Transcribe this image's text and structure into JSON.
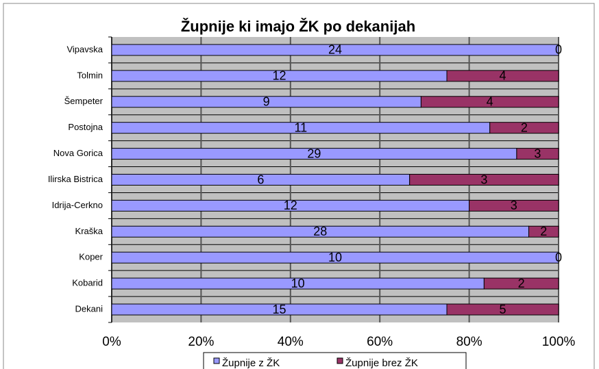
{
  "chart_data": {
    "type": "bar",
    "orientation": "horizontal",
    "stacking": "percent",
    "title": "Župnije ki imajo ŽK po dekanijah",
    "categories": [
      "Vipavska",
      "Tolmin",
      "Šempeter",
      "Postojna",
      "Nova Gorica",
      "Ilirska Bistrica",
      "Idrija-Cerkno",
      "Kraška",
      "Koper",
      "Kobarid",
      "Dekani"
    ],
    "series": [
      {
        "name": "Župnije z ŽK",
        "color": "#9999ff",
        "values": [
          24,
          12,
          9,
          11,
          29,
          6,
          12,
          28,
          10,
          10,
          15
        ]
      },
      {
        "name": "Župnije brez ŽK",
        "color": "#993366",
        "values": [
          0,
          4,
          4,
          2,
          3,
          3,
          3,
          2,
          0,
          2,
          5
        ]
      }
    ],
    "xlim": [
      0,
      100
    ],
    "xticks": [
      {
        "value": 0,
        "label": "0%"
      },
      {
        "value": 20,
        "label": "20%"
      },
      {
        "value": 40,
        "label": "40%"
      },
      {
        "value": 60,
        "label": "60%"
      },
      {
        "value": 80,
        "label": "80%"
      },
      {
        "value": 100,
        "label": "100%"
      }
    ],
    "grid": true
  }
}
